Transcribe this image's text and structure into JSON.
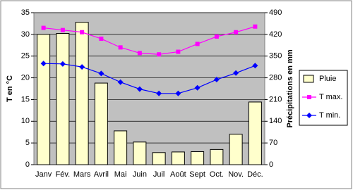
{
  "chart_data": {
    "type": "combo",
    "ylabel": "T en °C",
    "y2label": "Précipitations en mm",
    "categories": [
      "Janv",
      "Fév.",
      "Mars",
      "Avril",
      "Mai",
      "Juin",
      "Juil",
      "Août",
      "Sept",
      "Oct.",
      "Nov.",
      "Déc."
    ],
    "series": [
      {
        "name": "Pluie",
        "type": "bar",
        "axis": "y2",
        "color": "#ffffcc",
        "values": [
          420,
          423,
          459,
          263,
          109,
          73,
          39,
          41,
          42,
          49,
          98,
          202
        ]
      },
      {
        "name": "T max.",
        "type": "line",
        "marker": "square",
        "color": "#ff00ff",
        "values": [
          31.5,
          31,
          30.5,
          29,
          27,
          25.7,
          25.4,
          26,
          27.8,
          29.5,
          30.5,
          31.8
        ]
      },
      {
        "name": "T min.",
        "type": "line",
        "marker": "diamond",
        "color": "#0000ff",
        "values": [
          23.3,
          23.2,
          22.5,
          21,
          19,
          17.4,
          16.4,
          16.4,
          17.7,
          19.6,
          21.1,
          22.8
        ]
      }
    ],
    "ylim": [
      0,
      35
    ],
    "yticks": [
      0,
      5,
      10,
      15,
      20,
      25,
      30,
      35
    ],
    "y2lim": [
      0,
      490
    ],
    "y2ticks": [
      0,
      70,
      140,
      210,
      280,
      350,
      420,
      490
    ],
    "grid": true,
    "legend": "right"
  }
}
